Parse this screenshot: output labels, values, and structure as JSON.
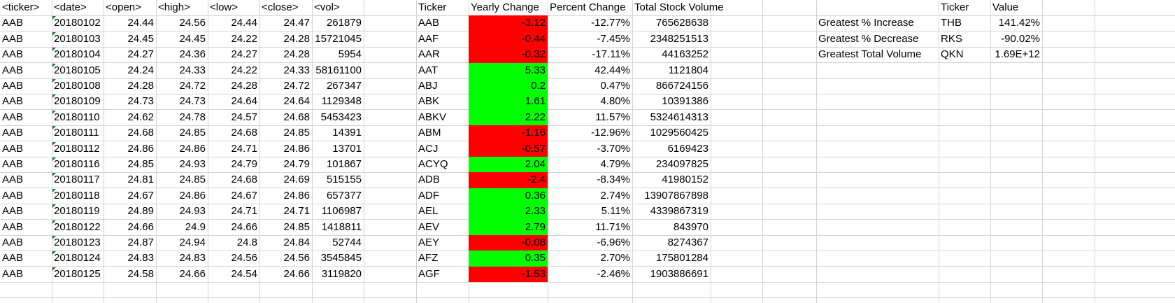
{
  "raw": {
    "headers": [
      "<ticker>",
      "<date>",
      "<open>",
      "<high>",
      "<low>",
      "<close>",
      "<vol>"
    ],
    "rows": [
      [
        "AAB",
        "20180102",
        "24.44",
        "24.56",
        "24.44",
        "24.47",
        "261879"
      ],
      [
        "AAB",
        "20180103",
        "24.45",
        "24.45",
        "24.22",
        "24.28",
        "15721045"
      ],
      [
        "AAB",
        "20180104",
        "24.27",
        "24.36",
        "24.27",
        "24.28",
        "5954"
      ],
      [
        "AAB",
        "20180105",
        "24.24",
        "24.33",
        "24.22",
        "24.33",
        "58161100"
      ],
      [
        "AAB",
        "20180108",
        "24.28",
        "24.72",
        "24.28",
        "24.72",
        "267347"
      ],
      [
        "AAB",
        "20180109",
        "24.73",
        "24.73",
        "24.64",
        "24.64",
        "1129348"
      ],
      [
        "AAB",
        "20180110",
        "24.62",
        "24.78",
        "24.57",
        "24.68",
        "5453423"
      ],
      [
        "AAB",
        "20180111",
        "24.68",
        "24.85",
        "24.68",
        "24.85",
        "14391"
      ],
      [
        "AAB",
        "20180112",
        "24.86",
        "24.86",
        "24.71",
        "24.86",
        "13701"
      ],
      [
        "AAB",
        "20180116",
        "24.85",
        "24.93",
        "24.79",
        "24.79",
        "101867"
      ],
      [
        "AAB",
        "20180117",
        "24.81",
        "24.85",
        "24.68",
        "24.69",
        "515155"
      ],
      [
        "AAB",
        "20180118",
        "24.67",
        "24.86",
        "24.67",
        "24.86",
        "657377"
      ],
      [
        "AAB",
        "20180119",
        "24.89",
        "24.93",
        "24.71",
        "24.71",
        "1106987"
      ],
      [
        "AAB",
        "20180122",
        "24.66",
        "24.9",
        "24.66",
        "24.85",
        "1418811"
      ],
      [
        "AAB",
        "20180123",
        "24.87",
        "24.94",
        "24.8",
        "24.84",
        "52744"
      ],
      [
        "AAB",
        "20180124",
        "24.83",
        "24.83",
        "24.56",
        "24.56",
        "3545845"
      ],
      [
        "AAB",
        "20180125",
        "24.58",
        "24.66",
        "24.54",
        "24.66",
        "3119820"
      ]
    ]
  },
  "summary": {
    "headers": [
      "Ticker",
      "Yearly Change",
      "Percent Change",
      "Total Stock Volume"
    ],
    "rows": [
      [
        "AAB",
        "-3.12",
        "-12.77%",
        "765628638"
      ],
      [
        "AAF",
        "-0.44",
        "-7.45%",
        "2348251513"
      ],
      [
        "AAR",
        "-0.32",
        "-17.11%",
        "44163252"
      ],
      [
        "AAT",
        "5.33",
        "42.44%",
        "1121804"
      ],
      [
        "ABJ",
        "0.2",
        "0.47%",
        "866724156"
      ],
      [
        "ABK",
        "1.61",
        "4.80%",
        "10391386"
      ],
      [
        "ABKV",
        "2.22",
        "11.57%",
        "5324614313"
      ],
      [
        "ABM",
        "-1.16",
        "-12.96%",
        "1029560425"
      ],
      [
        "ACJ",
        "-0.57",
        "-3.70%",
        "6169423"
      ],
      [
        "ACYQ",
        "2.04",
        "4.79%",
        "234097825"
      ],
      [
        "ADB",
        "-2.4",
        "-8.34%",
        "41980152"
      ],
      [
        "ADF",
        "0.36",
        "2.74%",
        "13907867898"
      ],
      [
        "AEL",
        "2.33",
        "5.11%",
        "4339867319"
      ],
      [
        "AEV",
        "2.79",
        "11.71%",
        "843970"
      ],
      [
        "AEY",
        "-0.08",
        "-6.96%",
        "8274367"
      ],
      [
        "AFZ",
        "0.35",
        "2.70%",
        "175801284"
      ],
      [
        "AGF",
        "-1.53",
        "-2.46%",
        "1903886691"
      ]
    ]
  },
  "greatest": {
    "headers": [
      "Ticker",
      "Value"
    ],
    "rows": [
      [
        "Greatest % Increase",
        "THB",
        "141.42%"
      ],
      [
        "Greatest % Decrease",
        "RKS",
        "-90.02%"
      ],
      [
        "Greatest Total Volume",
        "QKN",
        "1.69E+12"
      ]
    ]
  },
  "colors": {
    "positive": "#00ff00",
    "negative": "#ff0000",
    "gridline": "#d4d4d4",
    "triangle": "#1e7b34"
  }
}
